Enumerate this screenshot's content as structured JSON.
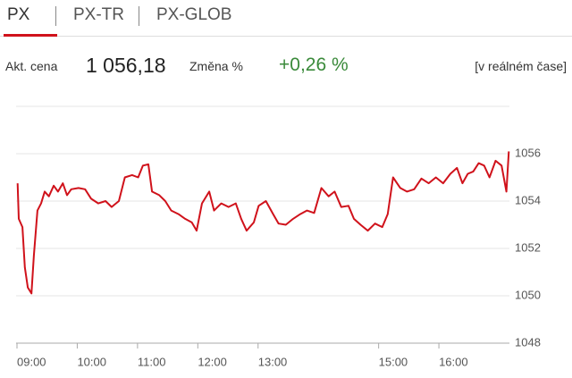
{
  "tabs": [
    "PX",
    "PX-TR",
    "PX-GLOB"
  ],
  "info": {
    "price_label": "Akt. cena",
    "price": "1 056,18",
    "change_label": "Změna %",
    "change": "+0,26 %",
    "mode": "[v reálném čase]"
  },
  "chart_data": {
    "type": "line",
    "color": "#d0121b",
    "x": [
      9.01,
      9.03,
      9.09,
      9.13,
      9.18,
      9.24,
      9.28,
      9.34,
      9.4,
      9.46,
      9.53,
      9.61,
      9.68,
      9.76,
      9.83,
      9.9,
      10.02,
      10.13,
      10.23,
      10.35,
      10.47,
      10.57,
      10.69,
      10.79,
      10.91,
      11.01,
      11.09,
      11.18,
      11.24,
      11.36,
      11.46,
      11.56,
      11.68,
      11.79,
      11.9,
      11.98,
      12.07,
      12.19,
      12.27,
      12.39,
      12.51,
      12.63,
      12.72,
      12.81,
      12.93,
      13.01,
      13.13,
      13.25,
      13.34,
      13.46,
      13.58,
      13.7,
      13.81,
      13.93,
      14.05,
      14.17,
      14.27,
      14.38,
      14.5,
      14.59,
      14.7,
      14.82,
      14.94,
      15.06,
      15.15,
      15.24,
      15.36,
      15.47,
      15.59,
      15.71,
      15.83,
      15.95,
      16.07,
      16.19,
      16.3,
      16.39,
      16.48,
      16.57,
      16.66,
      16.75,
      16.84,
      16.94,
      17.04,
      17.12,
      17.16
    ],
    "values": [
      1054.75,
      1053.25,
      1052.9,
      1051.2,
      1050.35,
      1050.1,
      1051.7,
      1053.6,
      1053.9,
      1054.4,
      1054.2,
      1054.65,
      1054.4,
      1054.75,
      1054.25,
      1054.5,
      1054.55,
      1054.5,
      1054.1,
      1053.9,
      1054,
      1053.75,
      1054,
      1055,
      1055.1,
      1055,
      1055.5,
      1055.55,
      1054.4,
      1054.25,
      1054,
      1053.6,
      1053.45,
      1053.25,
      1053.1,
      1052.75,
      1053.9,
      1054.4,
      1053.6,
      1053.9,
      1053.75,
      1053.9,
      1053.25,
      1052.75,
      1053.1,
      1053.8,
      1054,
      1053.45,
      1053.05,
      1053,
      1053.25,
      1053.45,
      1053.6,
      1053.5,
      1054.55,
      1054.2,
      1054.4,
      1053.75,
      1053.8,
      1053.25,
      1053,
      1052.75,
      1053.05,
      1052.9,
      1053.45,
      1055,
      1054.55,
      1054.4,
      1054.5,
      1054.95,
      1054.75,
      1055,
      1054.75,
      1055.15,
      1055.4,
      1054.75,
      1055.15,
      1055.25,
      1055.6,
      1055.5,
      1055,
      1055.7,
      1055.5,
      1054.4,
      1056.1
    ],
    "xlim": [
      9,
      17.2
    ],
    "xticks": [
      {
        "value": 9,
        "label": "09:00"
      },
      {
        "value": 10,
        "label": "10:00"
      },
      {
        "value": 11,
        "label": "11:00"
      },
      {
        "value": 12,
        "label": "12:00"
      },
      {
        "value": 13,
        "label": "13:00"
      },
      {
        "value": 15,
        "label": "15:00"
      },
      {
        "value": 16,
        "label": "16:00"
      }
    ],
    "ylim": [
      1048,
      1058
    ],
    "yticks": [
      1048,
      1050,
      1052,
      1054,
      1056
    ],
    "grid": true
  }
}
